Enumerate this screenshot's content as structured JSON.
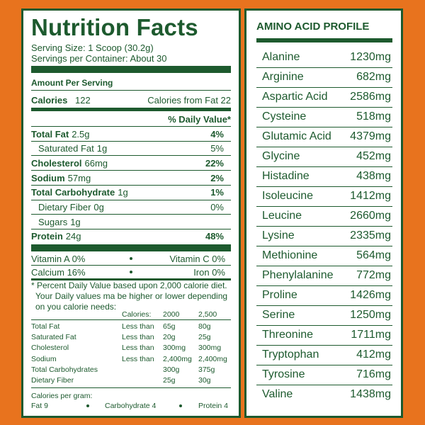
{
  "nutrition": {
    "title": "Nutrition Facts",
    "serving_size": "Serving Size: 1 Scoop (30.2g)",
    "servings_per_container": "Servings per Container: About 30",
    "amount_per_serving": "Amount Per Serving",
    "calories_label": "Calories",
    "calories_value": "122",
    "calories_from_fat": "Calories from Fat 22",
    "daily_value_header": "% Daily Value*",
    "nutrients": [
      [
        "Total Fat",
        "2.5g",
        "4%"
      ],
      [
        "Saturated Fat",
        "1g",
        "5%"
      ],
      [
        "Cholesterol",
        "66mg",
        "22%"
      ],
      [
        "Sodium",
        "57mg",
        "2%"
      ],
      [
        "Total Carbohydrate",
        "1g",
        "1%"
      ],
      [
        "Dietary Fiber",
        "0g",
        "0%"
      ],
      [
        "Sugars",
        "1g"
      ],
      [
        "Protein",
        "24g",
        "48%"
      ]
    ],
    "vitamins": [
      [
        "Vitamin A 0%",
        "Vitamin C 0%"
      ],
      [
        "Calcium 16%",
        "Iron 0%"
      ]
    ],
    "footnote": [
      "* Percent Daily Value based upon 2,000 calorie diet.",
      "Your Daily values ma be higher or lower depending",
      "on you calorie needs:"
    ],
    "dv_table": {
      "header": [
        "Calories:",
        "2000",
        "2,500"
      ],
      "rows": [
        [
          "Total Fat",
          "Less than",
          "65g",
          "80g"
        ],
        [
          "Saturated Fat",
          "Less than",
          "20g",
          "25g"
        ],
        [
          "Cholesterol",
          "Less than",
          "300mg",
          "300mg"
        ],
        [
          "Sodium",
          "Less than",
          "2,400mg",
          "2,400mg"
        ],
        [
          "Total Carbohydrates",
          "300g",
          "375g"
        ],
        [
          "Dietary Fiber",
          "25g",
          "30g"
        ]
      ]
    },
    "calories_per_gram": "Calories per gram:",
    "per_gram": [
      "Fat 9",
      "Carbohydrate 4",
      "Protein 4"
    ]
  },
  "amino": {
    "title": "AMINO ACID PROFILE",
    "rows": [
      [
        "Alanine",
        "1230mg"
      ],
      [
        "Arginine",
        "682mg"
      ],
      [
        "Aspartic Acid",
        "2586mg"
      ],
      [
        "Cysteine",
        "518mg"
      ],
      [
        "Glutamic Acid",
        "4379mg"
      ],
      [
        "Glycine",
        "452mg"
      ],
      [
        "Histadine",
        "438mg"
      ],
      [
        "Isoleucine",
        "1412mg"
      ],
      [
        "Leucine",
        "2660mg"
      ],
      [
        "Lysine",
        "2335mg"
      ],
      [
        "Methionine",
        "564mg"
      ],
      [
        "Phenylalanine",
        "772mg"
      ],
      [
        "Proline",
        "1426mg"
      ],
      [
        "Serine",
        "1250mg"
      ],
      [
        "Threonine",
        "1711mg"
      ],
      [
        "Tryptophan",
        "412mg"
      ],
      [
        "Tyrosine",
        "716mg"
      ],
      [
        "Valine",
        "1438mg"
      ]
    ]
  }
}
